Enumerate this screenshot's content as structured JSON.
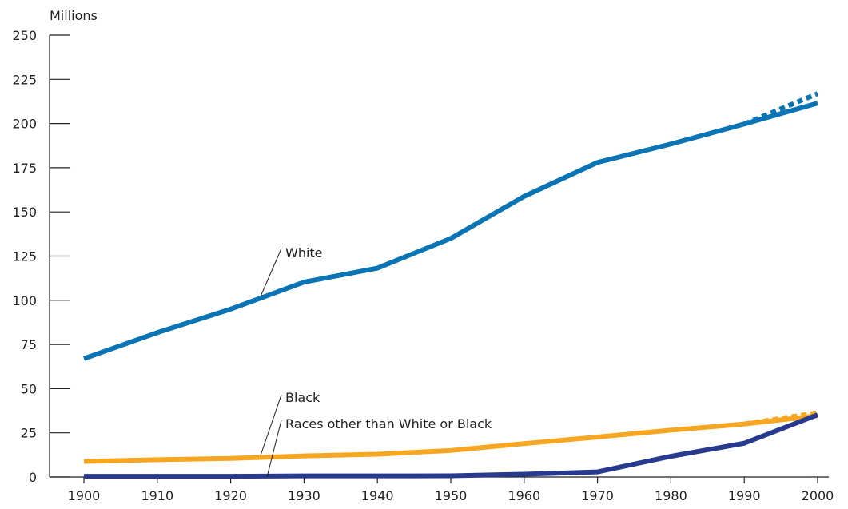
{
  "chart_data": {
    "type": "line",
    "title": "",
    "xlabel": "",
    "ylabel": "Millions",
    "x": [
      1900,
      1910,
      1920,
      1930,
      1940,
      1950,
      1960,
      1970,
      1980,
      1990,
      2000
    ],
    "xticks": [
      "1900",
      "1910",
      "1920",
      "1930",
      "1940",
      "1950",
      "1960",
      "1970",
      "1980",
      "1990",
      "2000"
    ],
    "yticks": [
      "0",
      "25",
      "50",
      "75",
      "100",
      "125",
      "150",
      "175",
      "200",
      "225",
      "250"
    ],
    "ylim": [
      0,
      250
    ],
    "xlim": [
      1900,
      2000
    ],
    "grid": false,
    "legend": "none",
    "series": [
      {
        "name": "White",
        "color": "#0a74b4",
        "values": [
          67,
          81.7,
          95,
          110.3,
          118.2,
          135,
          158.8,
          178,
          188.4,
          199.7,
          211.5
        ],
        "alt_2000": 216.9
      },
      {
        "name": "Black",
        "color": "#f7a622",
        "values": [
          8.8,
          9.8,
          10.5,
          11.9,
          12.9,
          15,
          18.9,
          22.6,
          26.5,
          30,
          34.7
        ],
        "alt_2000": 36.4
      },
      {
        "name": "Races other than White or Black",
        "color": "#273a8e",
        "values": [
          0.4,
          0.4,
          0.4,
          0.6,
          0.6,
          0.7,
          1.6,
          2.9,
          11.7,
          19.1,
          35.2
        ]
      }
    ]
  }
}
